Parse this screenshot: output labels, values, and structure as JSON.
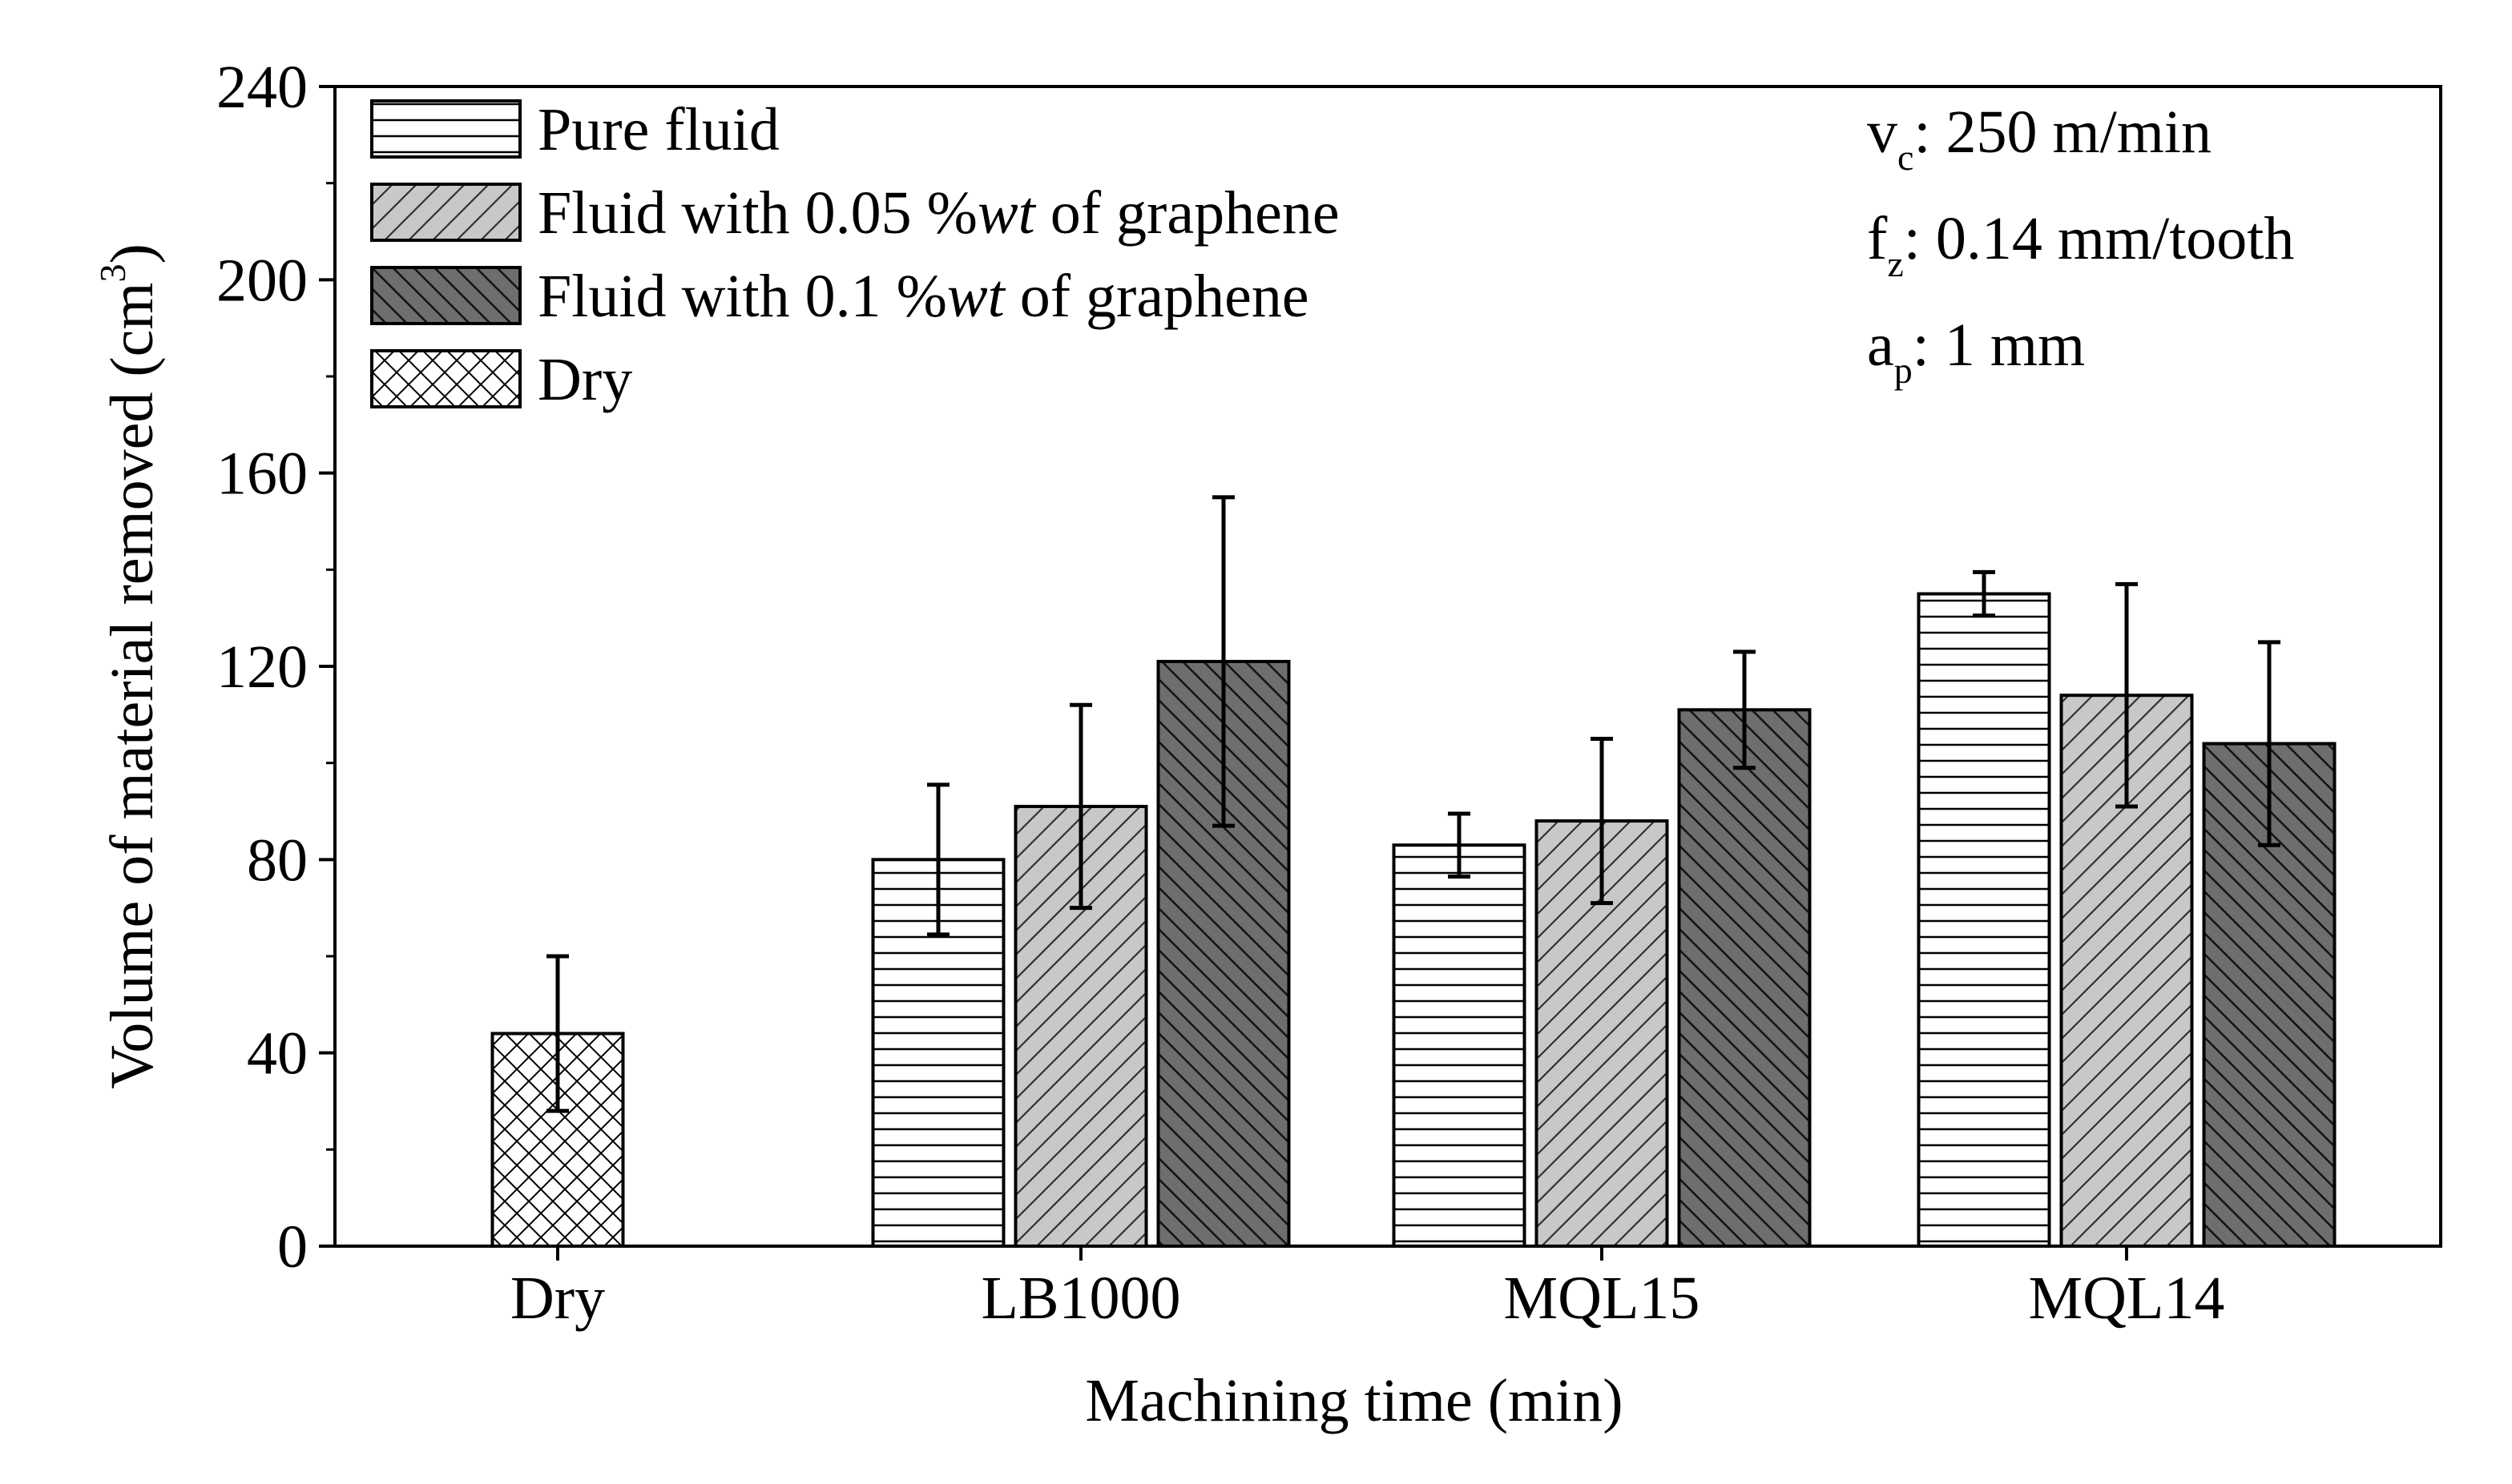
{
  "chart_data": {
    "type": "bar",
    "xlabel": "Machining time (min)",
    "ylabel": "Volume of material removed (cm",
    "ylabel_sup": "3",
    "ylabel_close": ")",
    "ylim": [
      0,
      240
    ],
    "yticks": [
      0,
      40,
      80,
      120,
      160,
      200,
      240
    ],
    "ytick_labels": [
      "0",
      "40",
      "80",
      "120",
      "160",
      "200",
      "240"
    ],
    "categories": [
      "Dry",
      "LB1000",
      "MQL15",
      "MQL14"
    ],
    "series": [
      {
        "name": "Pure fluid",
        "legend_label": {
          "pre": "Pure fluid",
          "italic": "",
          "post": ""
        },
        "pattern": "horizontal-lines",
        "fill": "#ffffff",
        "values": [
          null,
          80,
          83,
          135
        ],
        "errors": [
          null,
          15.5,
          6.5,
          4.5
        ]
      },
      {
        "name": "Fluid with 0.05 %wt of graphene",
        "legend_label": {
          "pre": "Fluid with 0.05 %",
          "italic": "wt",
          "post": " of graphene"
        },
        "pattern": "diagonal-forward",
        "fill": "#c8c8c8",
        "values": [
          null,
          91,
          88,
          114
        ],
        "errors": [
          null,
          21,
          17,
          23
        ]
      },
      {
        "name": "Fluid with 0.1 %wt of graphene",
        "legend_label": {
          "pre": "Fluid with 0.1 %",
          "italic": "wt",
          "post": " of graphene"
        },
        "pattern": "diagonal-backward",
        "fill": "#6e6e6e",
        "values": [
          null,
          121,
          111,
          104
        ],
        "errors": [
          null,
          34,
          12,
          21
        ]
      },
      {
        "name": "Dry",
        "legend_label": {
          "pre": "Dry",
          "italic": "",
          "post": ""
        },
        "pattern": "crosshatch",
        "fill": "#ffffff",
        "values": [
          44,
          null,
          null,
          null
        ],
        "errors": [
          16,
          null,
          null,
          null
        ]
      }
    ],
    "annotations": [
      {
        "main": "v",
        "sub": "c",
        "rest": ": 250 m/min"
      },
      {
        "main": "f",
        "sub": "z",
        "rest": ": 0.14 mm/tooth"
      },
      {
        "main": "a",
        "sub": "p",
        "rest": ": 1 mm"
      }
    ],
    "legend_position": "top-left",
    "grid": false
  }
}
